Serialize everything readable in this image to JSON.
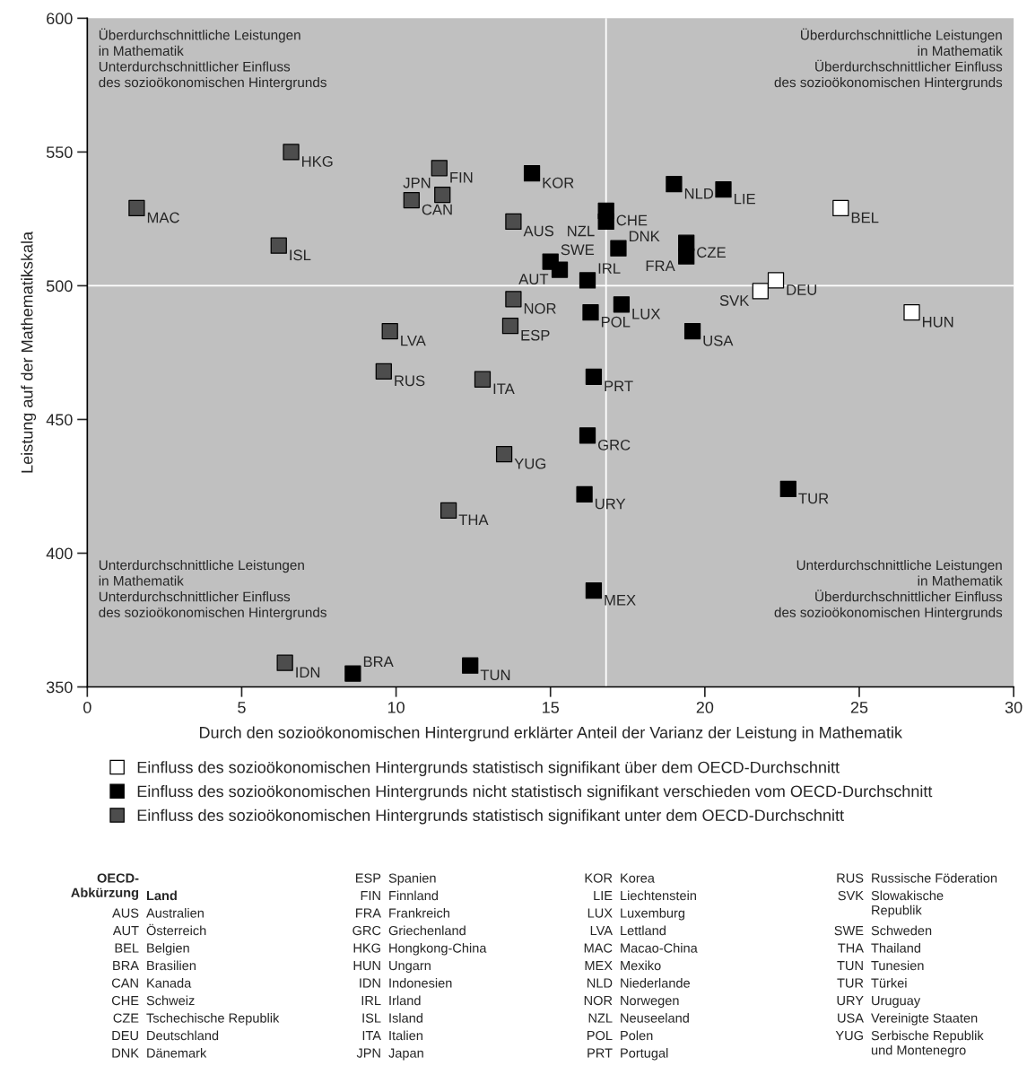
{
  "chart_data": {
    "type": "scatter",
    "xlabel": "Durch den sozioökonomischen Hintergrund erklärter Anteil der Varianz der Leistung in Mathematik",
    "ylabel": "Leistung auf der Mathematikskala",
    "xlim": [
      0,
      30
    ],
    "xticks": [
      0,
      5,
      10,
      15,
      20,
      25,
      30
    ],
    "ylim": [
      350,
      600
    ],
    "yticks": [
      350,
      400,
      450,
      500,
      550,
      600
    ],
    "grid": false,
    "marker": "square",
    "legend": "bottom",
    "ref_lines": [
      {
        "axis": "x",
        "value": 16.8,
        "label": null,
        "color": "#ffffff"
      },
      {
        "axis": "y",
        "value": 500,
        "label": null,
        "color": "#ffffff"
      }
    ],
    "series": [
      {
        "name": "Einfluss des sozioökonomischen Hintergrunds statistisch signifikant über dem OECD-Durchschnitt",
        "color": "#ffffff",
        "x": [
          24.4,
          22.3,
          21.8,
          26.7
        ],
        "values": [
          529,
          502,
          498,
          490
        ],
        "value_labels": [
          "BEL",
          "DEU",
          "SVK",
          "HUN"
        ]
      },
      {
        "name": "Einfluss des sozioökonomischen Hintergrunds nicht statistisch signifikant verschieden vom OECD-Durchschnitt",
        "color": "#000000",
        "x": [
          14.4,
          16.8,
          16.8,
          19.0,
          20.6,
          19.4,
          19.4,
          17.2,
          15.0,
          15.3,
          16.2,
          17.3,
          16.3,
          19.6,
          16.4,
          16.2,
          16.1,
          22.7,
          16.4,
          8.6,
          12.4
        ],
        "values": [
          542,
          528,
          524,
          538,
          536,
          516,
          511,
          514,
          509,
          506,
          502,
          493,
          490,
          483,
          466,
          444,
          422,
          424,
          386,
          355,
          358
        ],
        "value_labels": [
          "KOR",
          "CHE",
          "NZL",
          "NLD",
          "LIE",
          "CZE",
          "FRA",
          "DNK",
          "SWE",
          "AUT",
          "IRL",
          "LUX",
          "POL",
          "USA",
          "PRT",
          "GRC",
          "URY",
          "TUR",
          "MEX",
          "BRA",
          "TUN"
        ]
      },
      {
        "name": "Einfluss des sozioökonomischen Hintergrunds statistisch signifikant unter dem OECD-Durchschnitt",
        "color": "#4d4d4d",
        "x": [
          1.6,
          6.6,
          6.2,
          11.4,
          10.5,
          11.5,
          13.8,
          13.8,
          9.8,
          13.7,
          9.6,
          12.8,
          13.5,
          11.7,
          6.4
        ],
        "values": [
          529,
          550,
          515,
          544,
          532,
          534,
          524,
          495,
          483,
          485,
          468,
          465,
          437,
          416,
          359
        ],
        "value_labels": [
          "MAC",
          "HKG",
          "ISL",
          "FIN",
          "CAN",
          "JPN",
          "AUS",
          "NOR",
          "LVA",
          "ESP",
          "RUS",
          "ITA",
          "YUG",
          "THA",
          "IDN"
        ]
      }
    ],
    "annotations": [
      "Überdurchschnittliche Leistungen\nin Mathematik\nUnterdurchschnittlicher Einfluss\ndes sozioökonomischen Hintergrunds",
      "Überdurchschnittliche Leistungen\nin Mathematik\nÜberdurchschnittlicher Einfluss\ndes sozioökonomischen Hintergrunds",
      "Unterdurchschnittliche Leistungen\nin Mathematik\nUnterdurchschnittlicher Einfluss\ndes sozioökonomischen Hintergrunds",
      "Unterdurchschnittliche Leistungen\nin Mathematik\nÜberdurchschnittlicher Einfluss\ndes sozioökonomischen Hintergrunds",
      "OECD-\nAbkürzung\tLand",
      "AUS\tAustralien",
      "AUT\tÖsterreich",
      "BEL\tBelgien",
      "BRA\tBrasilien",
      "CAN\tKanada",
      "CHE\tSchweiz",
      "CZE\tTschechische Republik",
      "DEU\tDeutschland",
      "DNK\tDänemark",
      "ESP\tSpanien",
      "FIN\tFinnland",
      "FRA\tFrankreich",
      "GRC\tGriechenland",
      "HKG\tHongkong-China",
      "HUN\tUngarn",
      "IDN\tIndonesien",
      "IRL\tIrland",
      "ISL\tIsland",
      "ITA\tItalien",
      "JPN\tJapan",
      "KOR\tKorea",
      "LIE\tLiechtenstein",
      "LUX\tLuxemburg",
      "LVA\tLettland",
      "MAC\tMacao-China",
      "MEX\tMexiko",
      "NLD\tNiederlande",
      "NOR\tNorwegen",
      "NZL\tNeuseeland",
      "POL\tPolen",
      "PRT\tPortugal",
      "RUS\tRussische Föderation",
      "SVK\tSlowakische\nRepublik",
      "SWE\tSchweden",
      "THA\tThailand",
      "TUN\tTunesien",
      "TUR\tTürkei",
      "URY\tUruguay",
      "USA\tVereinigte Staaten",
      "YUG\tSerbische Republik\nund Montenegro"
    ]
  }
}
